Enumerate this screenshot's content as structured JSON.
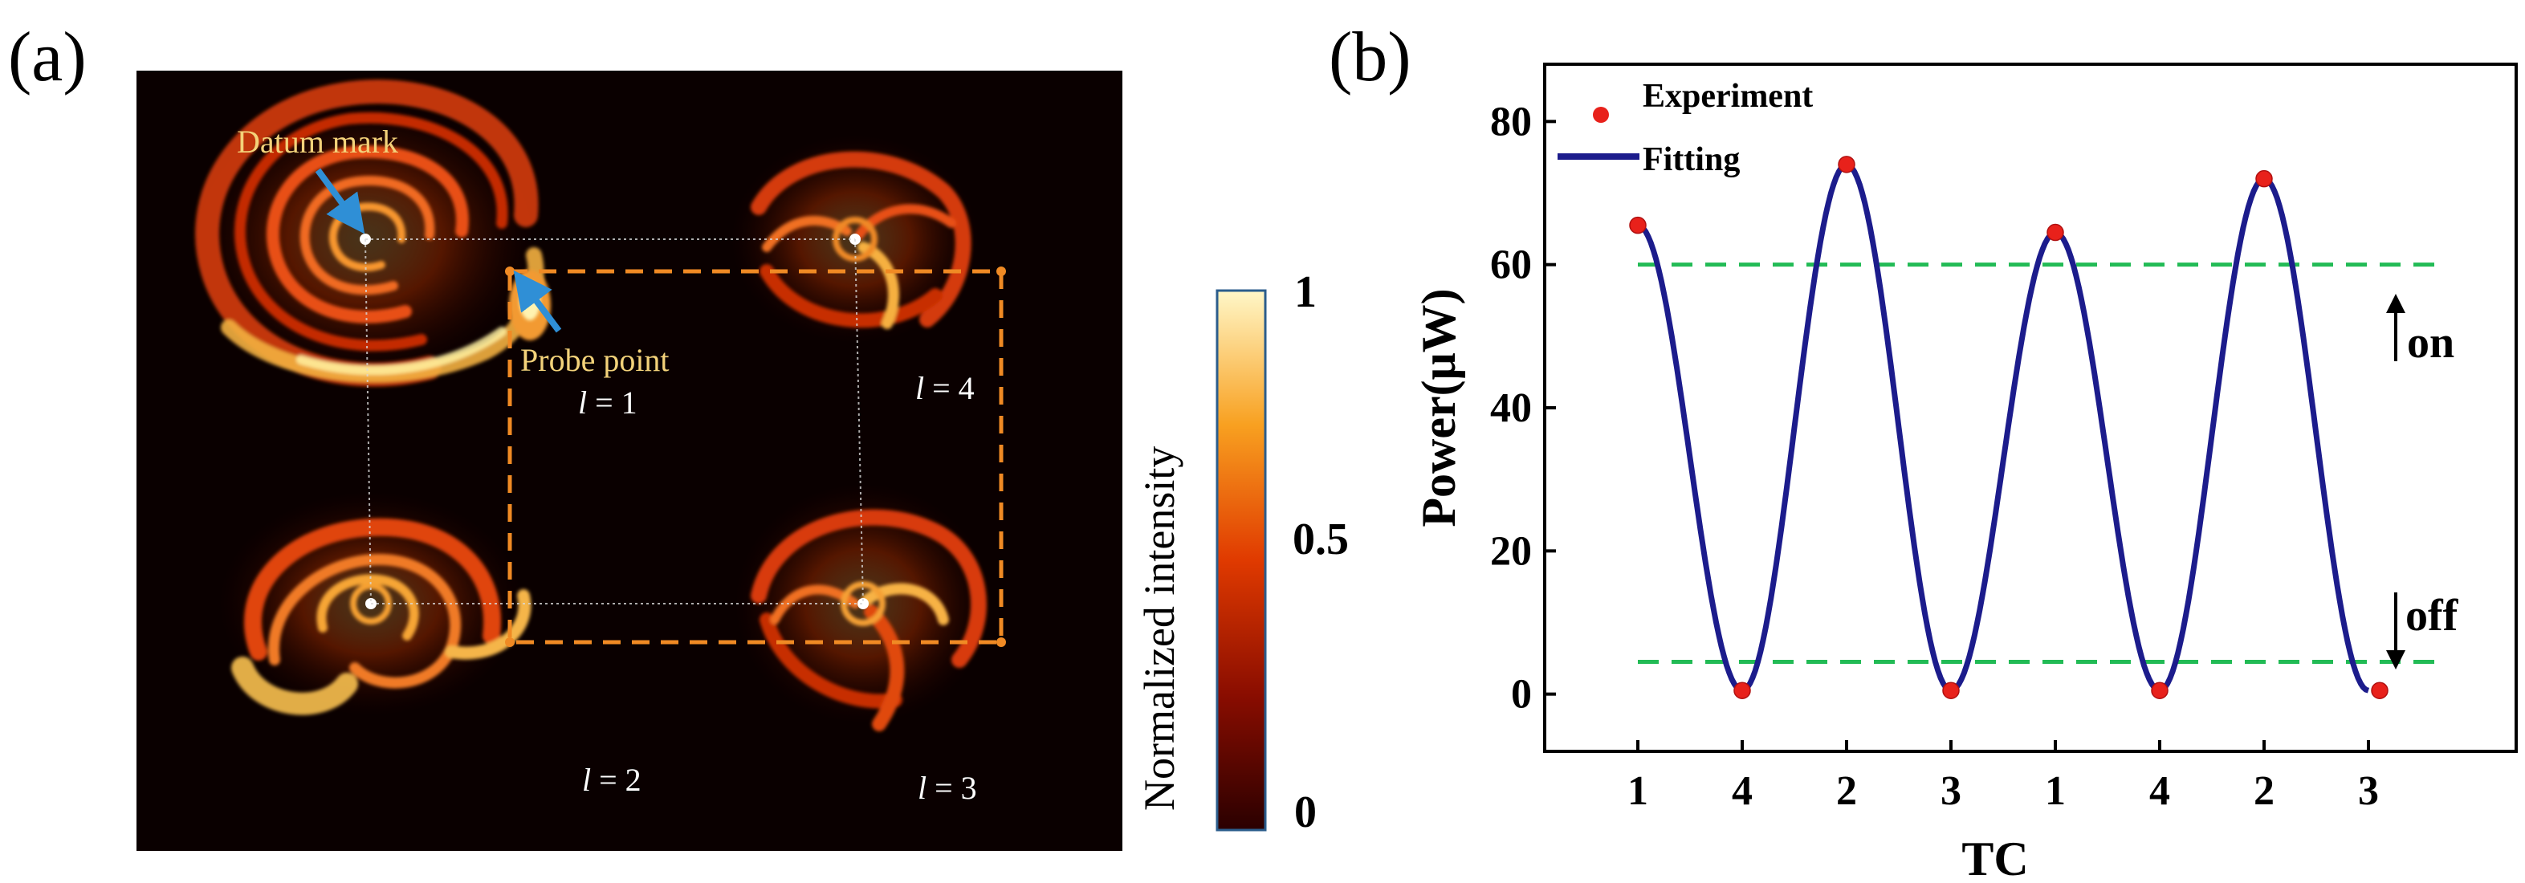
{
  "panel_a": {
    "label": "(a)",
    "datum_mark": "Datum mark",
    "probe_point": "Probe point",
    "modes": [
      {
        "italic": "l",
        "rest": " = 1"
      },
      {
        "italic": "l",
        "rest": " = 4"
      },
      {
        "italic": "l",
        "rest": " = 2"
      },
      {
        "italic": "l",
        "rest": " = 3"
      }
    ],
    "colorbar": {
      "label": "Normalized intensity",
      "ticks": [
        "1",
        "0.5",
        "0"
      ]
    },
    "colors": {
      "background": "#0a0000",
      "dashed_box": "#f08a24",
      "arrow": "#2f8fd6",
      "annotation": "#f3d27a"
    }
  },
  "chart_data": {
    "type": "line",
    "panel_label": "(b)",
    "title": "",
    "xlabel": "TC",
    "ylabel": "Power(μW)",
    "categories": [
      "1",
      "4",
      "2",
      "3",
      "1",
      "4",
      "2",
      "3"
    ],
    "ylim": [
      -8,
      88
    ],
    "yticks": [
      0,
      20,
      40,
      60,
      80
    ],
    "series": [
      {
        "name": "Experiment",
        "kind": "scatter",
        "color": "#e8211b",
        "values": [
          65.5,
          0.5,
          74,
          0.5,
          64.5,
          0.5,
          72,
          0.5
        ]
      },
      {
        "name": "Fitting",
        "kind": "line",
        "color": "#1c1c8c",
        "values": [
          65.5,
          0.5,
          74,
          0.5,
          64.5,
          0.5,
          72,
          0.5
        ]
      }
    ],
    "thresholds": [
      {
        "value": 60,
        "color": "#22bb55"
      },
      {
        "value": 4.5,
        "color": "#22bb55"
      }
    ],
    "annotations": [
      "on",
      "off"
    ],
    "legend_position": "top-left"
  }
}
